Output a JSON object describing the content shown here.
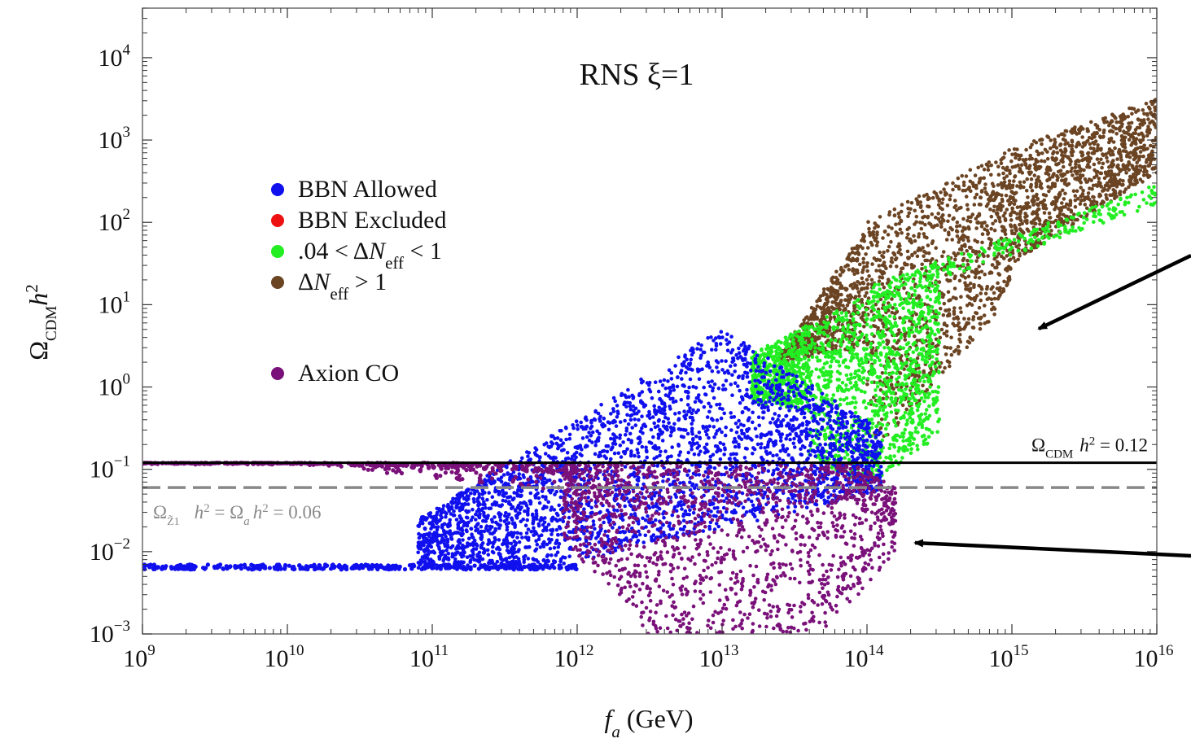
{
  "chart_data": {
    "type": "scatter",
    "title": "RNS ξ=1",
    "xlabel": "f_a (GeV)",
    "ylabel": "Ω_CDM h^2",
    "x_scale": "log",
    "y_scale": "log",
    "xlim": [
      1000000000.0,
      1e+16
    ],
    "ylim": [
      0.001,
      40000
    ],
    "x_ticks": [
      {
        "base": "10",
        "exp": "9"
      },
      {
        "base": "10",
        "exp": "10"
      },
      {
        "base": "10",
        "exp": "11"
      },
      {
        "base": "10",
        "exp": "12"
      },
      {
        "base": "10",
        "exp": "13"
      },
      {
        "base": "10",
        "exp": "14"
      },
      {
        "base": "10",
        "exp": "15"
      },
      {
        "base": "10",
        "exp": "16"
      }
    ],
    "y_ticks": [
      {
        "base": "10",
        "exp": "−3"
      },
      {
        "base": "10",
        "exp": "−2"
      },
      {
        "base": "10",
        "exp": "−1"
      },
      {
        "base": "10",
        "exp": "0"
      },
      {
        "base": "10",
        "exp": "1"
      },
      {
        "base": "10",
        "exp": "2"
      },
      {
        "base": "10",
        "exp": "3"
      },
      {
        "base": "10",
        "exp": "4"
      }
    ],
    "grid": false,
    "legend_position": "left",
    "legend": [
      {
        "label": "BBN Allowed",
        "color": "#1010ee"
      },
      {
        "label": "BBN Excluded",
        "color": "#ee1111"
      },
      {
        "label": ".04 < ΔN_eff < 1",
        "color": "#22ee22"
      },
      {
        "label": "ΔN_eff > 1",
        "color": "#6b4423"
      },
      {
        "label": "Axion CO",
        "color": "#7a107a"
      }
    ],
    "series": [
      {
        "name": "BBN Allowed",
        "color": "#1010ee",
        "regions": [
          {
            "x_range": [
              1000000000.0,
              1000000000000.0
            ],
            "y": 0.0065,
            "form": "flat band"
          },
          {
            "x_range": [
              80000000000.0,
              120000000000000.0
            ],
            "y_range": [
              0.004,
              4.5
            ],
            "form": "scatter cloud"
          }
        ]
      },
      {
        "name": "BBN Excluded",
        "color": "#ee1111",
        "regions": []
      },
      {
        "name": ".04 < ΔN_eff < 1",
        "color": "#22ee22",
        "regions": [
          {
            "x_range": [
              15000000000000.0,
              300000000000000.0
            ],
            "y_range": [
              0.06,
              25
            ],
            "form": "scatter cloud"
          },
          {
            "x_range": [
              100000000000000.0,
              1e+16
            ],
            "y_range": [
              5,
              250
            ],
            "form": "thin trail"
          }
        ]
      },
      {
        "name": "ΔN_eff > 1",
        "color": "#6b4423",
        "regions": [
          {
            "x_range": [
              25000000000000.0,
              1e+16
            ],
            "y_range": [
              0.3,
              4000
            ],
            "form": "scatter cloud"
          }
        ]
      },
      {
        "name": "Axion CO",
        "color": "#7a107a",
        "regions": [
          {
            "x_range": [
              1000000000.0,
              1000000000000.0
            ],
            "y": 0.12,
            "form": "flat band"
          },
          {
            "x_range": [
              1000000000000.0,
              150000000000000.0
            ],
            "y_range": [
              0.001,
              0.12
            ],
            "form": "scatter cloud"
          }
        ]
      }
    ],
    "reference_lines": [
      {
        "label": "Ω_CDM h^2 = 0.12",
        "y": 0.12,
        "style": "solid",
        "color": "#000000"
      },
      {
        "label": "Ω_Z̃1 h^2 = Ω_a h^2 = 0.06",
        "y": 0.06,
        "style": "dashed",
        "color": "#888888"
      }
    ],
    "annotations": [
      {
        "type": "arrow",
        "target": "ΔN_eff > 1 region",
        "from": "right edge"
      },
      {
        "type": "arrow",
        "target": "Axion CO region",
        "from": "right edge"
      }
    ]
  }
}
